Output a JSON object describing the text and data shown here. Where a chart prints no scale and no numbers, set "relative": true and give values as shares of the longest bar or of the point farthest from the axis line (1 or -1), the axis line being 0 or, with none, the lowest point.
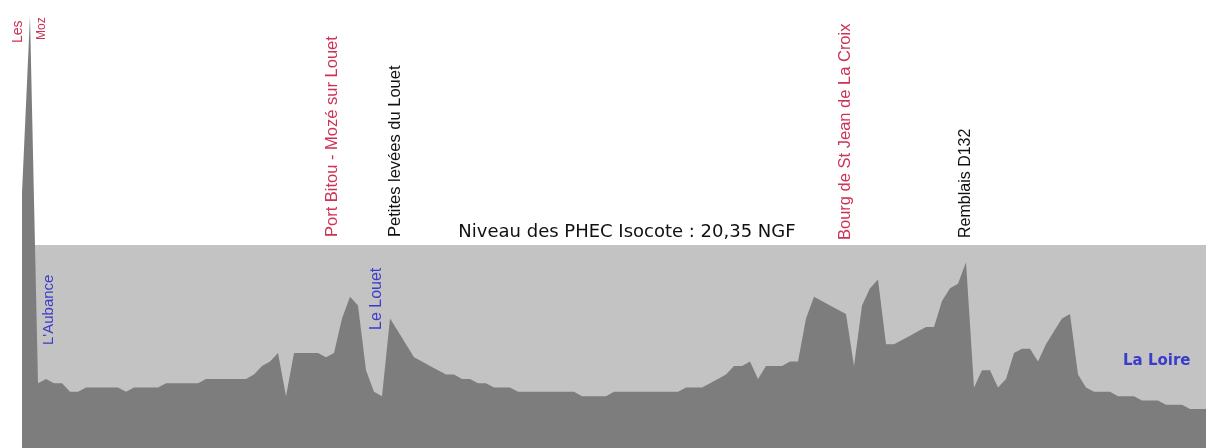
{
  "chart_data": {
    "type": "area",
    "relative": true,
    "color": "#7d7d7d",
    "categories": [
      null,
      null,
      null,
      null,
      null,
      null,
      null,
      null,
      null,
      null,
      null,
      null,
      null,
      null,
      null,
      null,
      null,
      null,
      null,
      null,
      null,
      null,
      null,
      null,
      null,
      null,
      null,
      null,
      null,
      null,
      null,
      null,
      null,
      null,
      null,
      null,
      null,
      null,
      null,
      null,
      null,
      null,
      null,
      null,
      null,
      null,
      null,
      null,
      null,
      null,
      null,
      null,
      null,
      null,
      null,
      null,
      null,
      null,
      null,
      null,
      null,
      null,
      null,
      null,
      null,
      null,
      null,
      null,
      null,
      null,
      null,
      null,
      null,
      null,
      null,
      null,
      null,
      null,
      null,
      null,
      null,
      null,
      null,
      null,
      null,
      null,
      null,
      null,
      null,
      null,
      null,
      null,
      null,
      null,
      null,
      null,
      null,
      null,
      null,
      null,
      null,
      null,
      null,
      null,
      null,
      null,
      null,
      null,
      null,
      null,
      null,
      null,
      null,
      null,
      null,
      null,
      null,
      null,
      null,
      null,
      null,
      null,
      null,
      null,
      null,
      null,
      null,
      null,
      null,
      null,
      null,
      null,
      null,
      null,
      null,
      null,
      null,
      null,
      null,
      null,
      null,
      null,
      null,
      null,
      null,
      null,
      null,
      null,
      null
    ],
    "values": [
      0.59,
      1,
      0.15,
      0.16,
      0.15,
      0.15,
      0.13,
      0.13,
      0.14,
      0.14,
      0.14,
      0.14,
      0.14,
      0.13,
      0.14,
      0.14,
      0.14,
      0.14,
      0.15,
      0.15,
      0.15,
      0.15,
      0.15,
      0.16,
      0.16,
      0.16,
      0.16,
      0.16,
      0.16,
      0.17,
      0.19,
      0.2,
      0.22,
      0.12,
      0.22,
      0.22,
      0.22,
      0.22,
      0.21,
      0.22,
      0.3,
      0.35,
      0.33,
      0.18,
      0.13,
      0.12,
      0.3,
      0.27,
      0.24,
      0.21,
      0.2,
      0.19,
      0.18,
      0.17,
      0.17,
      0.16,
      0.16,
      0.15,
      0.15,
      0.14,
      0.14,
      0.14,
      0.13,
      0.13,
      0.13,
      0.13,
      0.13,
      0.13,
      0.13,
      0.13,
      0.12,
      0.12,
      0.12,
      0.12,
      0.13,
      0.13,
      0.13,
      0.13,
      0.13,
      0.13,
      0.13,
      0.13,
      0.13,
      0.14,
      0.14,
      0.14,
      0.15,
      0.16,
      0.17,
      0.19,
      0.19,
      0.2,
      0.16,
      0.19,
      0.19,
      0.19,
      0.2,
      0.2,
      0.3,
      0.35,
      0.34,
      0.33,
      0.32,
      0.31,
      0.19,
      0.33,
      0.37,
      0.39,
      0.24,
      0.24,
      0.25,
      0.26,
      0.27,
      0.28,
      0.28,
      0.34,
      0.37,
      0.38,
      0.43,
      0.14,
      0.18,
      0.18,
      0.14,
      0.16,
      0.22,
      0.23,
      0.23,
      0.2,
      0.24,
      0.27,
      0.3,
      0.31,
      0.17,
      0.14,
      0.13,
      0.13,
      0.13,
      0.12,
      0.12,
      0.12,
      0.11,
      0.11,
      0.11,
      0.1,
      0.1,
      0.1,
      0.09,
      0.09,
      0.09
    ],
    "bands": [
      {
        "axis": "y",
        "from": 0,
        "to": 0.47,
        "label": "Niveau des PHEC Isocote : 20,35 NGF",
        "color": "#c3c3c3"
      }
    ],
    "annotations": [
      "Les",
      "Moz",
      "L'Aubance",
      "Port Bitou - Mozé sur Louet",
      "Le Louet",
      "Petites levées du Louet",
      "Bourg de St Jean de La Croix",
      "Remblais D132",
      "La Loire"
    ]
  }
}
